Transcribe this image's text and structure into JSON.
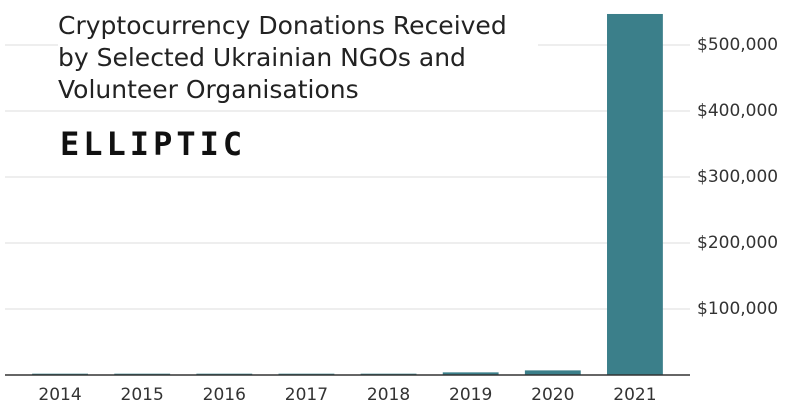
{
  "chart_data": {
    "type": "bar",
    "title": "Cryptocurrency Donations Received by Selected Ukrainian NGOs and Volunteer Organisations",
    "logo": "ELLIPTIC",
    "categories": [
      "2014",
      "2015",
      "2016",
      "2017",
      "2018",
      "2019",
      "2020",
      "2021"
    ],
    "values": [
      2000,
      2000,
      2000,
      2000,
      2000,
      4000,
      7000,
      547000
    ],
    "color": "#3b7f8a",
    "ylim": [
      0,
      560000
    ],
    "yticks": [
      {
        "value": 100000,
        "label": "$100,000"
      },
      {
        "value": 200000,
        "label": "$200,000"
      },
      {
        "value": 300000,
        "label": "$300,000"
      },
      {
        "value": 400000,
        "label": "$400,000"
      },
      {
        "value": 500000,
        "label": "$500,000"
      }
    ],
    "grid": true
  }
}
